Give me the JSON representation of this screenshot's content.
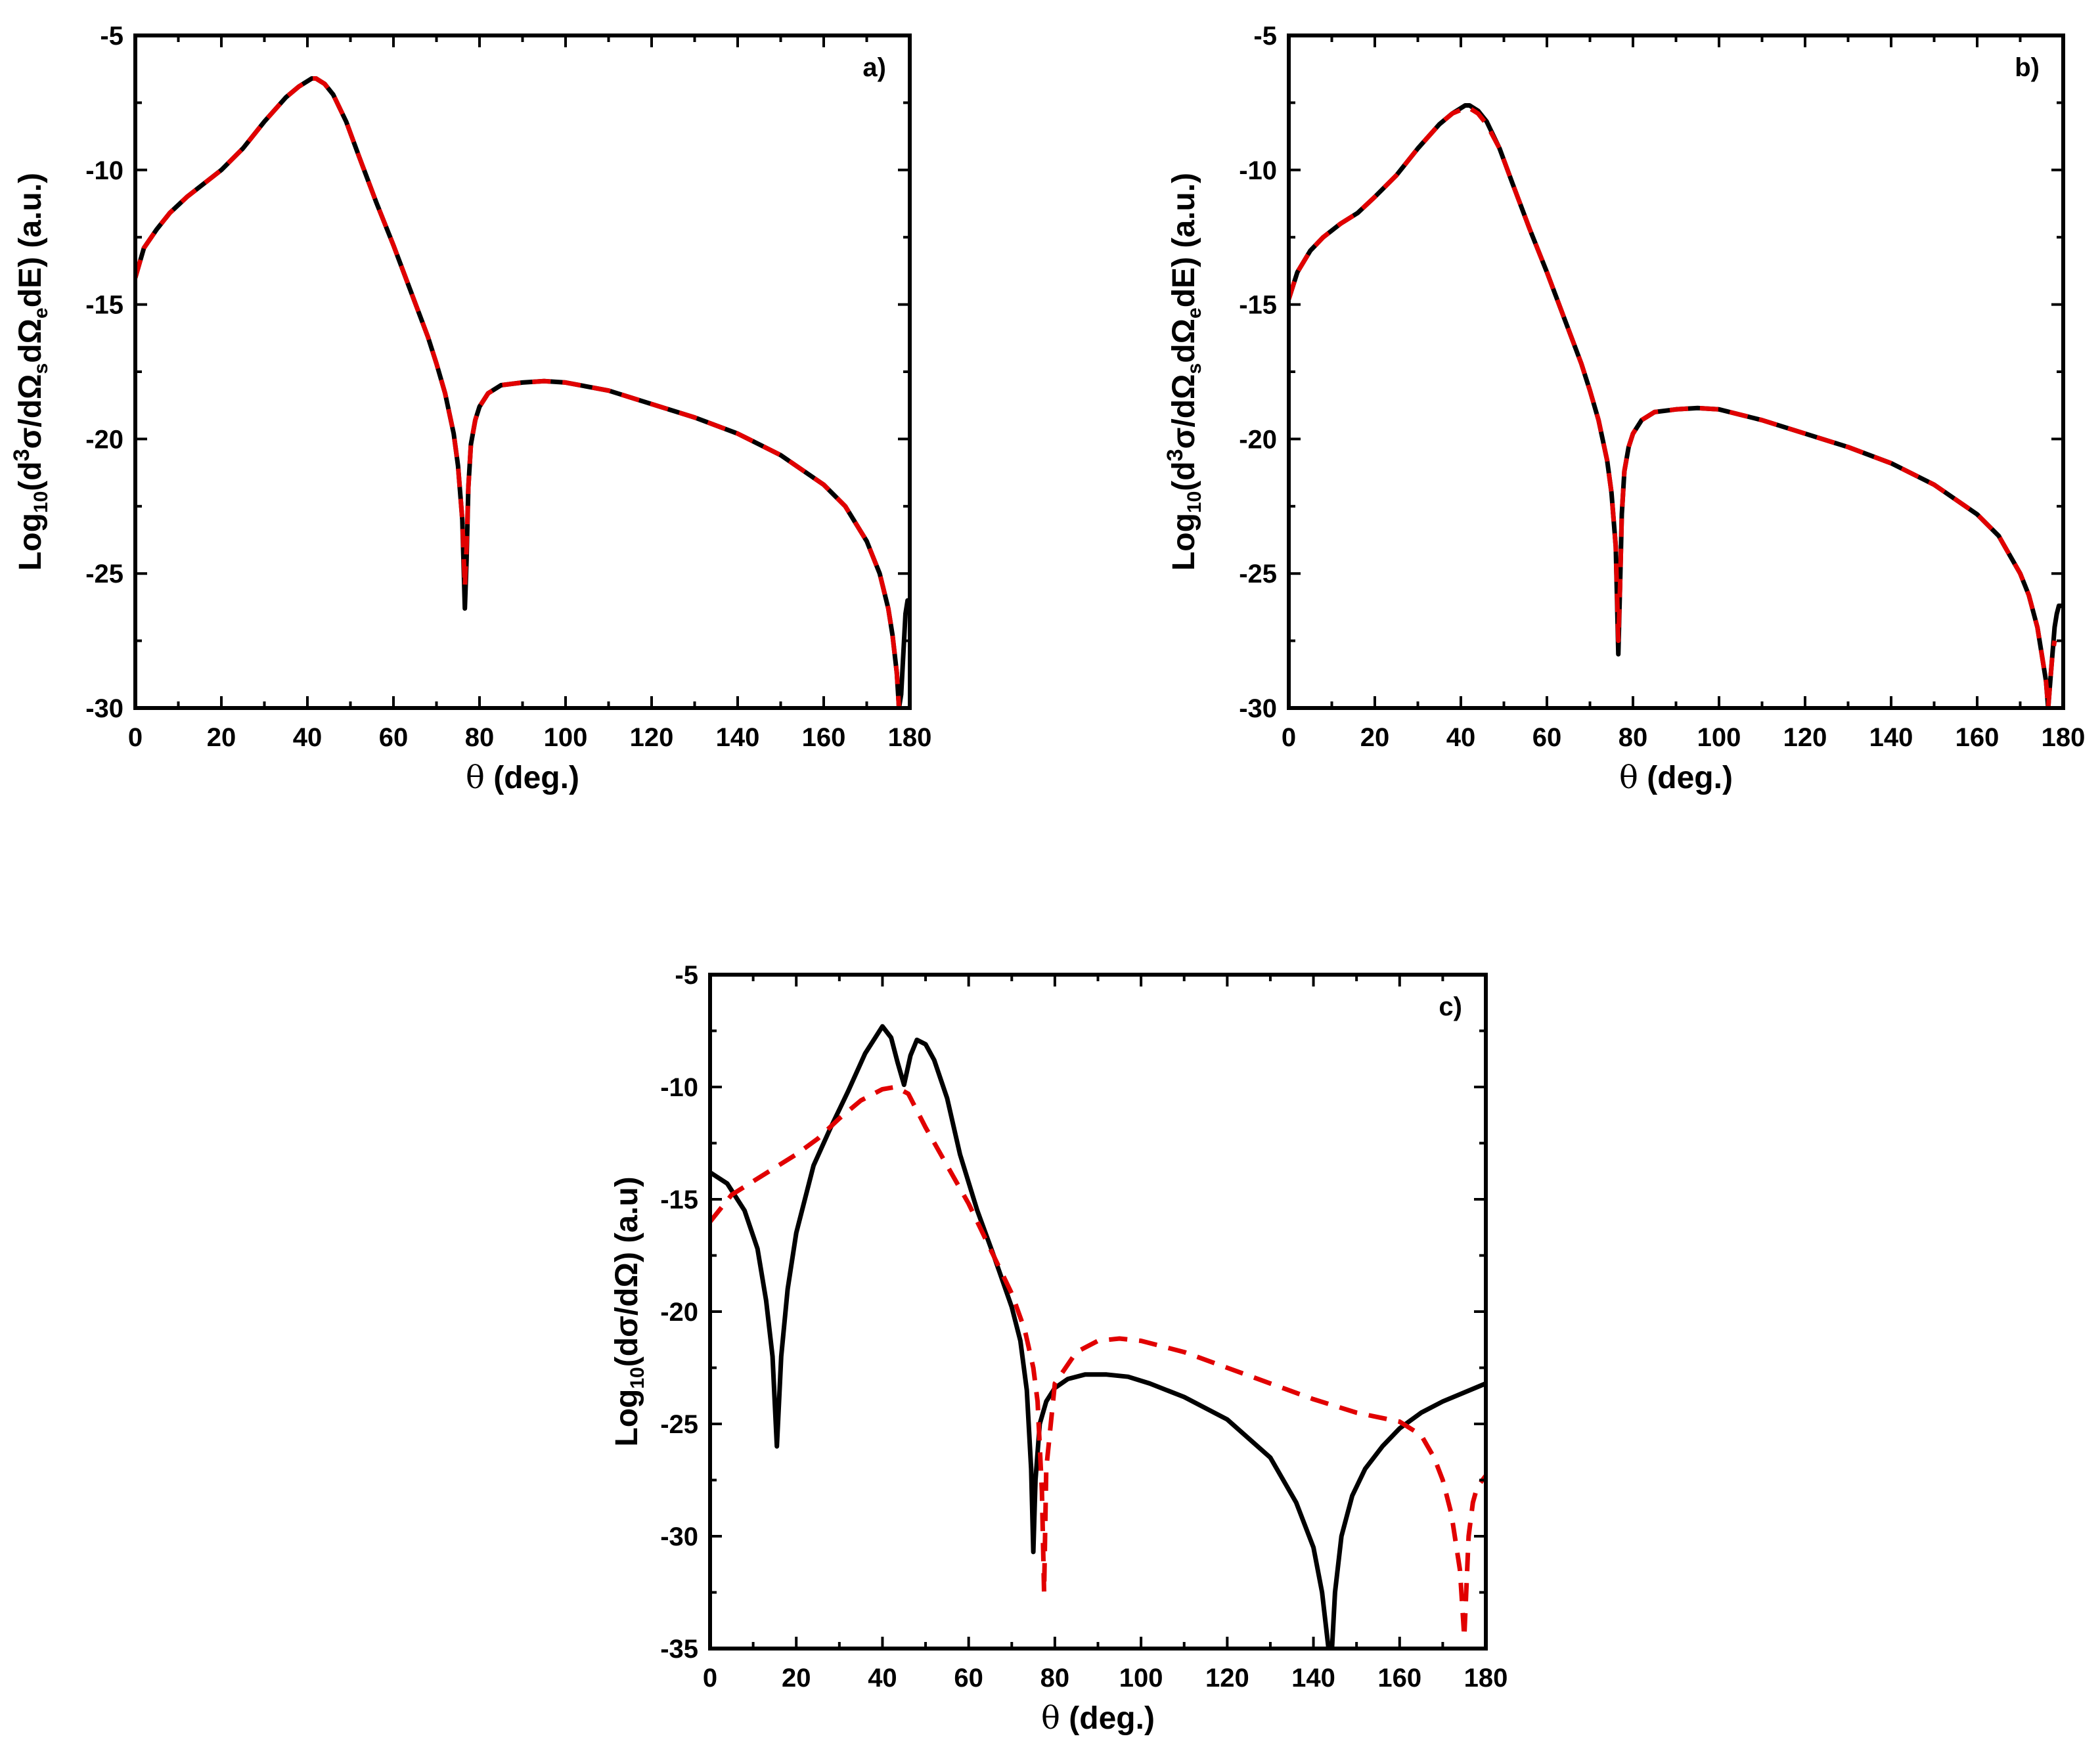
{
  "chart_data": [
    {
      "type": "line",
      "panel_label": "a)",
      "xlabel_prefix": "θ",
      "xlabel_rest": " (deg.)",
      "ylabel_parts": [
        "Log",
        "10",
        "(d",
        "3",
        "σ/dΩ",
        "s",
        "dΩ",
        "e",
        "dE) (a.u.)"
      ],
      "xlim": [
        0,
        180
      ],
      "ylim": [
        -30,
        -5
      ],
      "xticks": [
        0,
        20,
        40,
        60,
        80,
        100,
        120,
        140,
        160,
        180
      ],
      "yticks": [
        -5,
        -10,
        -15,
        -20,
        -25,
        -30
      ],
      "series": [
        {
          "name": "solid",
          "style": "solid",
          "color": "#000000",
          "x": [
            0,
            2,
            5,
            8,
            12,
            16,
            20,
            25,
            30,
            35,
            38,
            41,
            42,
            44,
            46,
            49,
            52,
            56,
            60,
            64,
            68,
            70,
            72,
            74,
            75,
            76,
            76.6,
            77,
            77.4,
            78,
            79,
            80,
            82,
            85,
            90,
            95,
            100,
            110,
            120,
            130,
            140,
            150,
            160,
            165,
            170,
            173,
            175,
            176,
            177,
            177.5,
            178,
            178.5,
            179,
            179.5,
            180
          ],
          "y": [
            -14,
            -12.9,
            -12.2,
            -11.6,
            -11.0,
            -10.5,
            -10.0,
            -9.2,
            -8.2,
            -7.3,
            -6.9,
            -6.6,
            -6.6,
            -6.8,
            -7.2,
            -8.2,
            -9.5,
            -11.2,
            -12.8,
            -14.5,
            -16.2,
            -17.2,
            -18.3,
            -19.8,
            -21.0,
            -23.0,
            -26.3,
            -24.5,
            -21.8,
            -20.2,
            -19.3,
            -18.8,
            -18.3,
            -18.0,
            -17.9,
            -17.85,
            -17.9,
            -18.2,
            -18.7,
            -19.2,
            -19.8,
            -20.6,
            -21.7,
            -22.5,
            -23.8,
            -25.0,
            -26.3,
            -27.3,
            -28.7,
            -30,
            -29.5,
            -28.0,
            -26.5,
            -26.0,
            -26.2
          ]
        },
        {
          "name": "dashed",
          "style": "dashed",
          "color": "#e10000",
          "x": [
            0,
            2,
            5,
            8,
            12,
            16,
            20,
            25,
            30,
            35,
            38,
            41,
            42,
            44,
            46,
            49,
            52,
            56,
            60,
            64,
            68,
            70,
            72,
            74,
            75,
            76,
            76.6,
            77,
            77.4,
            78,
            79,
            80,
            82,
            85,
            90,
            95,
            100,
            110,
            120,
            130,
            140,
            150,
            160,
            165,
            170,
            173,
            175,
            176,
            177,
            177.5,
            178
          ],
          "y": [
            -14,
            -12.9,
            -12.2,
            -11.6,
            -11.0,
            -10.5,
            -10.0,
            -9.2,
            -8.2,
            -7.3,
            -6.9,
            -6.6,
            -6.6,
            -6.8,
            -7.2,
            -8.2,
            -9.5,
            -11.2,
            -12.8,
            -14.5,
            -16.2,
            -17.2,
            -18.3,
            -19.8,
            -21.0,
            -23.0,
            -25.5,
            -24.0,
            -21.8,
            -20.2,
            -19.3,
            -18.8,
            -18.3,
            -18.0,
            -17.9,
            -17.85,
            -17.9,
            -18.2,
            -18.7,
            -19.2,
            -19.8,
            -20.6,
            -21.7,
            -22.5,
            -23.8,
            -25.0,
            -26.3,
            -27.3,
            -28.7,
            -30,
            -30
          ]
        }
      ]
    },
    {
      "type": "line",
      "panel_label": "b)",
      "xlabel_prefix": "θ",
      "xlabel_rest": " (deg.)",
      "ylabel_parts": [
        "Log",
        "10",
        "(d",
        "3",
        "σ/dΩ",
        "s",
        "dΩ",
        "e",
        "dE) (a.u.)"
      ],
      "xlim": [
        0,
        180
      ],
      "ylim": [
        -30,
        -5
      ],
      "xticks": [
        0,
        20,
        40,
        60,
        80,
        100,
        120,
        140,
        160,
        180
      ],
      "yticks": [
        -5,
        -10,
        -15,
        -20,
        -25,
        -30
      ],
      "series": [
        {
          "name": "solid",
          "style": "solid",
          "color": "#000000",
          "x": [
            0,
            2,
            5,
            8,
            12,
            16,
            20,
            25,
            30,
            35,
            38,
            41,
            42,
            44,
            46,
            49,
            52,
            56,
            60,
            64,
            68,
            70,
            72,
            74,
            75,
            76,
            76.6,
            77,
            77.4,
            78,
            79,
            80,
            82,
            85,
            90,
            95,
            100,
            110,
            120,
            130,
            140,
            150,
            160,
            165,
            170,
            172,
            174,
            175,
            176,
            176.5,
            177,
            177.5,
            178,
            178.5,
            179,
            180
          ],
          "y": [
            -14.8,
            -13.8,
            -13.0,
            -12.5,
            -12.0,
            -11.6,
            -11.0,
            -10.2,
            -9.2,
            -8.3,
            -7.9,
            -7.6,
            -7.6,
            -7.8,
            -8.2,
            -9.2,
            -10.5,
            -12.2,
            -13.8,
            -15.5,
            -17.2,
            -18.2,
            -19.3,
            -20.8,
            -22.0,
            -24.0,
            -28.0,
            -25.5,
            -22.8,
            -21.2,
            -20.3,
            -19.8,
            -19.3,
            -19.0,
            -18.9,
            -18.85,
            -18.9,
            -19.3,
            -19.8,
            -20.3,
            -20.9,
            -21.7,
            -22.8,
            -23.6,
            -25.0,
            -25.8,
            -27.0,
            -28.0,
            -29.0,
            -30,
            -29.0,
            -28.0,
            -27.0,
            -26.5,
            -26.2,
            -26.2
          ]
        },
        {
          "name": "dashed",
          "style": "dashed",
          "color": "#e10000",
          "x": [
            0,
            2,
            5,
            8,
            12,
            16,
            20,
            25,
            30,
            35,
            38,
            41,
            42,
            44,
            46,
            49,
            52,
            56,
            60,
            64,
            68,
            70,
            72,
            74,
            75,
            76,
            76.6,
            77,
            77.4,
            78,
            79,
            80,
            82,
            85,
            90,
            95,
            100,
            110,
            120,
            130,
            140,
            150,
            160,
            165,
            170,
            172,
            174,
            175,
            176,
            176.5,
            177,
            177.5,
            178
          ],
          "y": [
            -14.8,
            -13.8,
            -13.0,
            -12.5,
            -12.0,
            -11.6,
            -11.0,
            -10.2,
            -9.2,
            -8.3,
            -7.9,
            -7.7,
            -7.7,
            -7.9,
            -8.3,
            -9.2,
            -10.5,
            -12.2,
            -13.8,
            -15.5,
            -17.2,
            -18.2,
            -19.3,
            -20.8,
            -22.0,
            -24.0,
            -27.5,
            -25.5,
            -22.8,
            -21.2,
            -20.3,
            -19.8,
            -19.3,
            -19.0,
            -18.9,
            -18.85,
            -18.9,
            -19.3,
            -19.8,
            -20.3,
            -20.9,
            -21.7,
            -22.8,
            -23.6,
            -25.0,
            -25.8,
            -27.0,
            -28.0,
            -29.0,
            -30,
            -29.0,
            -28.0,
            -27.5
          ]
        }
      ]
    },
    {
      "type": "line",
      "panel_label": "c)",
      "xlabel_prefix": "θ",
      "xlabel_rest": " (deg.)",
      "ylabel_parts": [
        "Log",
        "10",
        "(dσ/dΩ) (a.u)"
      ],
      "xlim": [
        0,
        180
      ],
      "ylim": [
        -35,
        -5
      ],
      "xticks": [
        0,
        20,
        40,
        60,
        80,
        100,
        120,
        140,
        160,
        180
      ],
      "yticks": [
        -5,
        -10,
        -15,
        -20,
        -25,
        -30,
        -35
      ],
      "series": [
        {
          "name": "solid",
          "style": "solid",
          "color": "#000000",
          "x": [
            0,
            4,
            8,
            11,
            13,
            14.5,
            15.5,
            16.5,
            18,
            20,
            24,
            28,
            32,
            36,
            40,
            42,
            43.5,
            45,
            46.5,
            48,
            50,
            52,
            55,
            58,
            62,
            66,
            70,
            72,
            73.5,
            74.5,
            75,
            75.5,
            76.5,
            78,
            80,
            83,
            87,
            92,
            97,
            102,
            110,
            120,
            130,
            136,
            140,
            142,
            143.5,
            144.3,
            145,
            146.5,
            149,
            152,
            156,
            160,
            165,
            170,
            175,
            180
          ],
          "y": [
            -13.8,
            -14.3,
            -15.5,
            -17.2,
            -19.5,
            -22.0,
            -26.0,
            -22.0,
            -19.0,
            -16.5,
            -13.5,
            -11.8,
            -10.2,
            -8.5,
            -7.3,
            -7.8,
            -8.9,
            -9.9,
            -8.6,
            -7.9,
            -8.1,
            -8.8,
            -10.5,
            -13.0,
            -15.5,
            -17.6,
            -19.8,
            -21.3,
            -23.5,
            -27.0,
            -30.7,
            -27.5,
            -25.0,
            -24.0,
            -23.4,
            -23.0,
            -22.8,
            -22.8,
            -22.9,
            -23.2,
            -23.8,
            -24.8,
            -26.5,
            -28.5,
            -30.5,
            -32.5,
            -35,
            -35,
            -32.5,
            -30.0,
            -28.2,
            -27.0,
            -26.0,
            -25.2,
            -24.5,
            -24.0,
            -23.6,
            -23.2
          ]
        },
        {
          "name": "dashed",
          "style": "dashed",
          "color": "#e10000",
          "x": [
            0,
            5,
            10,
            15,
            20,
            25,
            30,
            35,
            40,
            43,
            46,
            50,
            55,
            60,
            65,
            70,
            73,
            75,
            76,
            77,
            77.5,
            78,
            80,
            85,
            90,
            95,
            100,
            110,
            120,
            130,
            140,
            150,
            160,
            165,
            168,
            170,
            172,
            174,
            175,
            176,
            177,
            178,
            180
          ],
          "y": [
            -16.0,
            -14.8,
            -14.2,
            -13.6,
            -13.0,
            -12.3,
            -11.4,
            -10.6,
            -10.1,
            -10.0,
            -10.3,
            -11.8,
            -13.5,
            -15.2,
            -17.2,
            -19.2,
            -20.8,
            -22.5,
            -24.0,
            -28.0,
            -32.5,
            -27.0,
            -23.2,
            -21.8,
            -21.3,
            -21.2,
            -21.3,
            -21.8,
            -22.5,
            -23.2,
            -23.9,
            -24.5,
            -24.9,
            -25.5,
            -26.5,
            -27.5,
            -29.0,
            -31.5,
            -34.5,
            -30.0,
            -28.5,
            -27.8,
            -27.3
          ]
        }
      ]
    }
  ]
}
